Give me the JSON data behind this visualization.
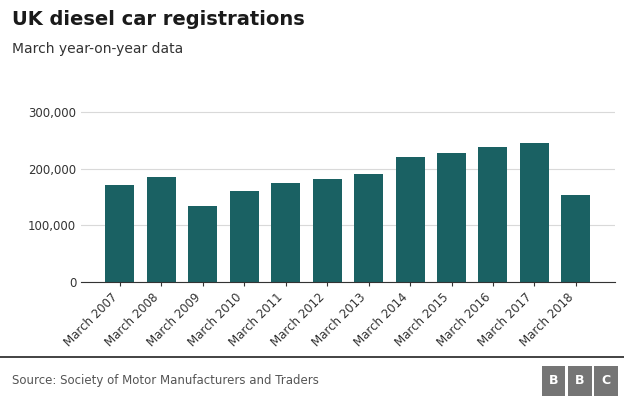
{
  "title": "UK diesel car registrations",
  "subtitle": "March year-on-year data",
  "source": "Source: Society of Motor Manufacturers and Traders",
  "categories": [
    "March 2007",
    "March 2008",
    "March 2009",
    "March 2010",
    "March 2011",
    "March 2012",
    "March 2013",
    "March 2014",
    "March 2015",
    "March 2016",
    "March 2017",
    "March 2018"
  ],
  "values": [
    172000,
    185000,
    135000,
    161000,
    174000,
    182000,
    191000,
    220000,
    227000,
    238000,
    245000,
    153000
  ],
  "bar_color": "#1a6163",
  "ylim": [
    0,
    320000
  ],
  "yticks": [
    0,
    100000,
    200000,
    300000
  ],
  "ytick_labels": [
    "0",
    "100,000",
    "200,000",
    "300,000"
  ],
  "background_color": "#ffffff",
  "grid_color": "#d9d9d9",
  "title_fontsize": 14,
  "subtitle_fontsize": 10,
  "source_fontsize": 8.5,
  "tick_fontsize": 8.5,
  "bbc_box_color": "#757575",
  "bbc_text_color": "#ffffff"
}
